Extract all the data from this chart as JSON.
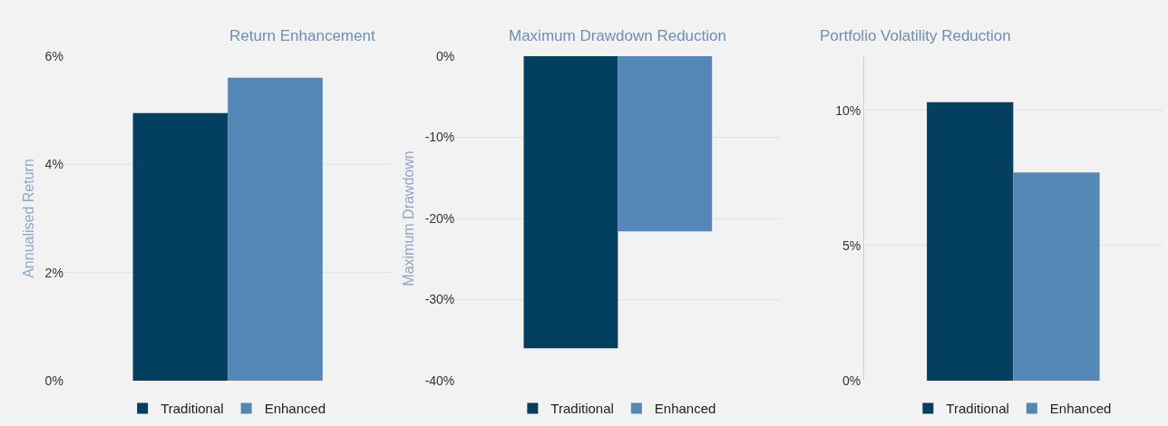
{
  "chart_data": [
    {
      "type": "bar",
      "title": "Return Enhancement",
      "ylabel": "Annualised Return",
      "categories": [
        null
      ],
      "series": [
        {
          "name": "Traditional",
          "color": "#034060",
          "values": [
            4.95
          ]
        },
        {
          "name": "Enhanced",
          "color": "#5487b6",
          "values": [
            5.6
          ]
        }
      ],
      "ylim": [
        0,
        6
      ],
      "yticks": [
        {
          "value": 0,
          "label": "0%"
        },
        {
          "value": 2,
          "label": "2%"
        },
        {
          "value": 4,
          "label": "4%"
        },
        {
          "value": 6,
          "label": "6%"
        }
      ],
      "grid": "y",
      "legend": "bottom"
    },
    {
      "type": "bar",
      "title": "Maximum Drawdown Reduction",
      "ylabel": "Maximum Drawdown",
      "categories": [
        null
      ],
      "series": [
        {
          "name": "Traditional",
          "color": "#034060",
          "values": [
            -36
          ]
        },
        {
          "name": "Enhanced",
          "color": "#5487b6",
          "values": [
            -21.6
          ]
        }
      ],
      "ylim": [
        -40,
        0
      ],
      "yticks": [
        {
          "value": -40,
          "label": "-40%"
        },
        {
          "value": -30,
          "label": "-30%"
        },
        {
          "value": -20,
          "label": "-20%"
        },
        {
          "value": -10,
          "label": "-10%"
        },
        {
          "value": 0,
          "label": "0%"
        }
      ],
      "grid": "y",
      "legend": "bottom"
    },
    {
      "type": "bar",
      "title": "Portfolio Volatility Reduction",
      "categories": [
        null
      ],
      "series": [
        {
          "name": "Traditional",
          "color": "#034060",
          "values": [
            10.3
          ]
        },
        {
          "name": "Enhanced",
          "color": "#5487b6",
          "values": [
            7.7
          ]
        }
      ],
      "ylim": [
        0,
        12
      ],
      "yticks": [
        {
          "value": 0,
          "label": "0%"
        },
        {
          "value": 5,
          "label": "5%"
        },
        {
          "value": 10,
          "label": "10%"
        }
      ],
      "grid": "y",
      "legend": "bottom"
    }
  ]
}
